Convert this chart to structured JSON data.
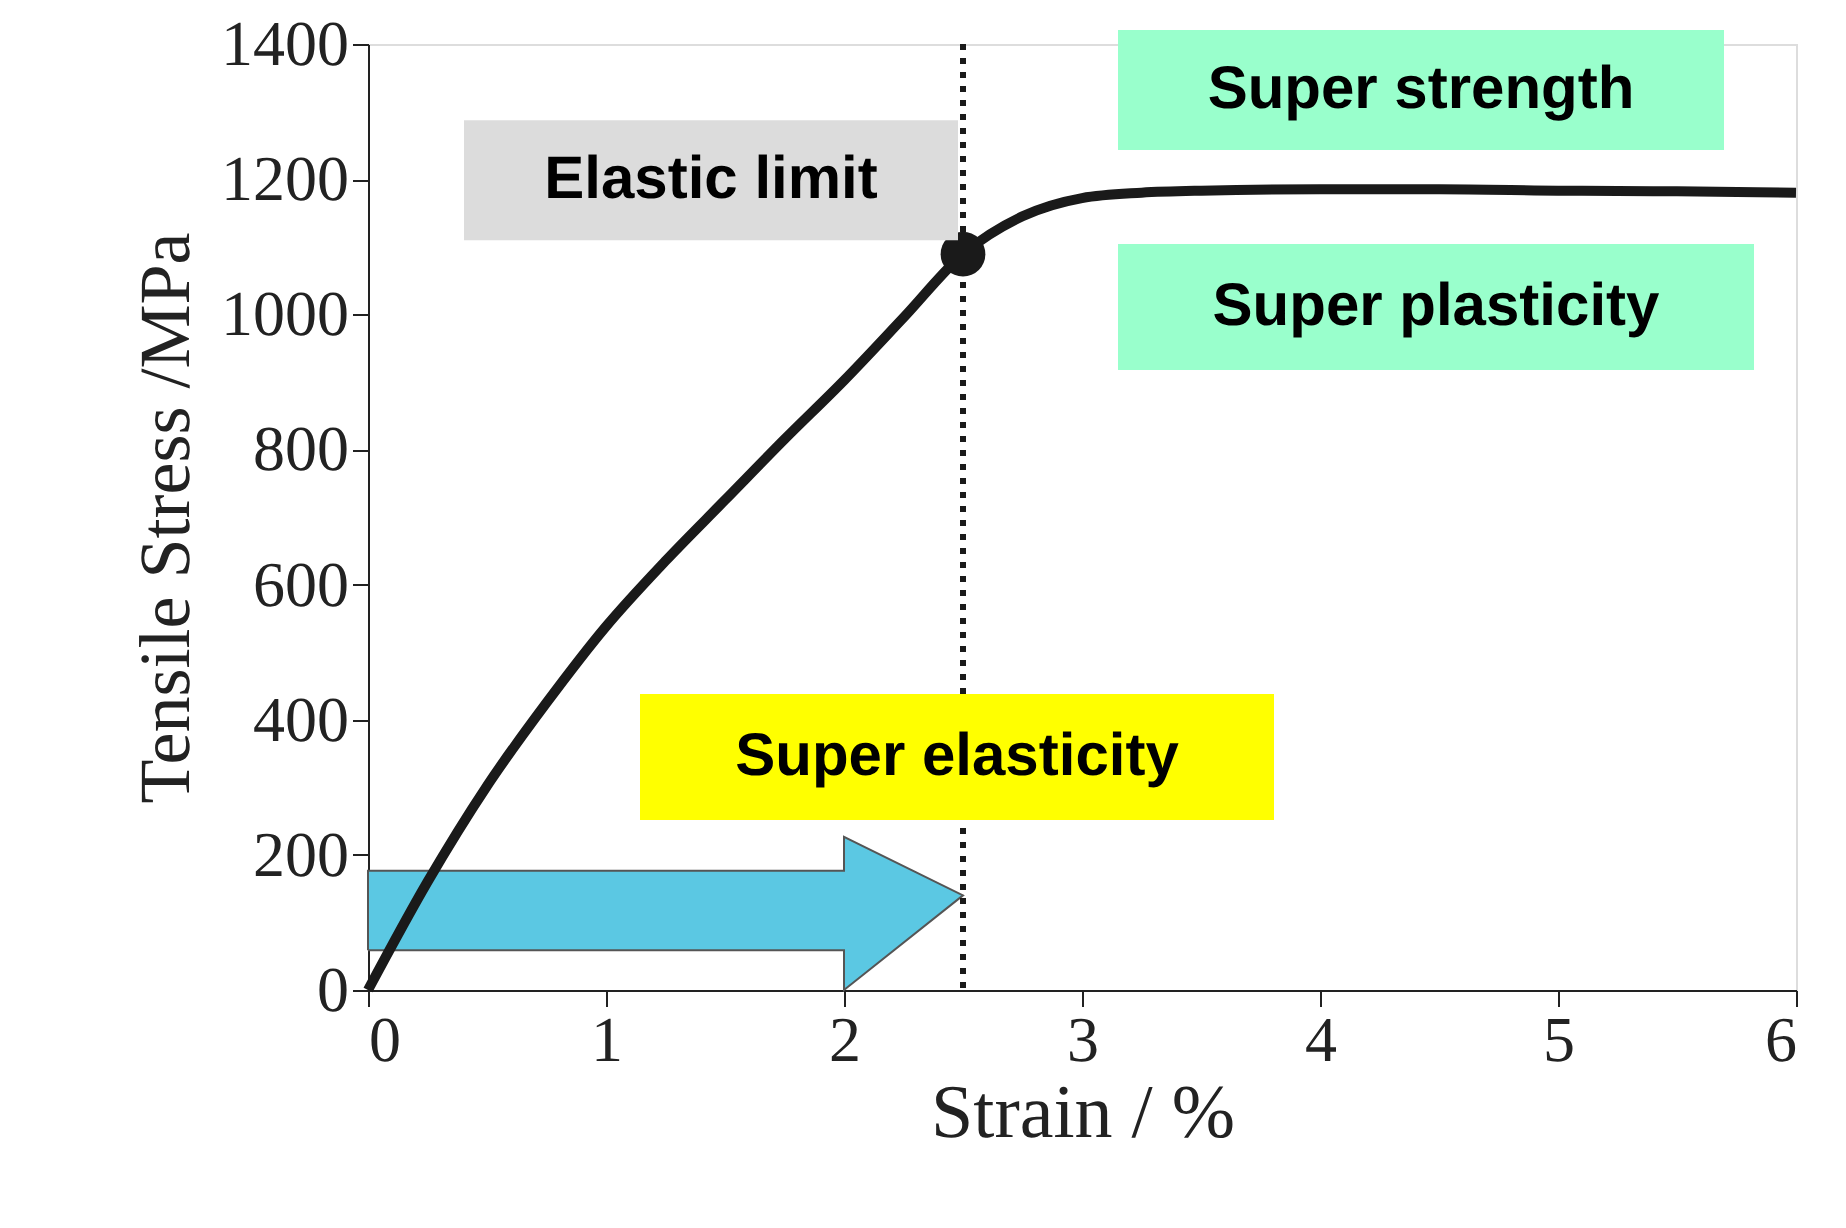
{
  "chart_data": {
    "type": "line",
    "xlabel": "Strain / %",
    "ylabel": "Tensile Stress /MPa",
    "xlim": [
      0,
      6
    ],
    "xticks": [
      0,
      1,
      2,
      3,
      4,
      5,
      6
    ],
    "ylim": [
      0,
      1400
    ],
    "yticks": [
      0,
      200,
      400,
      600,
      800,
      1000,
      1200,
      1400
    ],
    "grid": false,
    "series": [
      {
        "color": "#1a1a1a",
        "marker": "none",
        "x": [
          0,
          0.25,
          0.5,
          0.75,
          1,
          1.25,
          1.5,
          1.75,
          2,
          2.25,
          2.5,
          2.75,
          3,
          3.25,
          3.5,
          4,
          4.5,
          5,
          5.5,
          6
        ],
        "values": [
          0,
          160,
          302,
          425,
          538,
          635,
          725,
          815,
          902,
          995,
          1089,
          1145,
          1172,
          1180,
          1183,
          1185,
          1185,
          1183,
          1182,
          1180
        ]
      },
      {
        "type": "scatter",
        "color": "#1a1a1a",
        "marker": "circle",
        "x": [
          2.5
        ],
        "values": [
          1089
        ]
      }
    ],
    "ref_lines": [
      {
        "axis": "x",
        "value": 2.5,
        "color": "#1a1a1a",
        "line_style": "dotted"
      }
    ],
    "annotations": [
      {
        "text": "Elastic limit",
        "x": 2.5,
        "y": 1089
      },
      "Super strength",
      "Super plasticity",
      "Super elasticity"
    ]
  }
}
